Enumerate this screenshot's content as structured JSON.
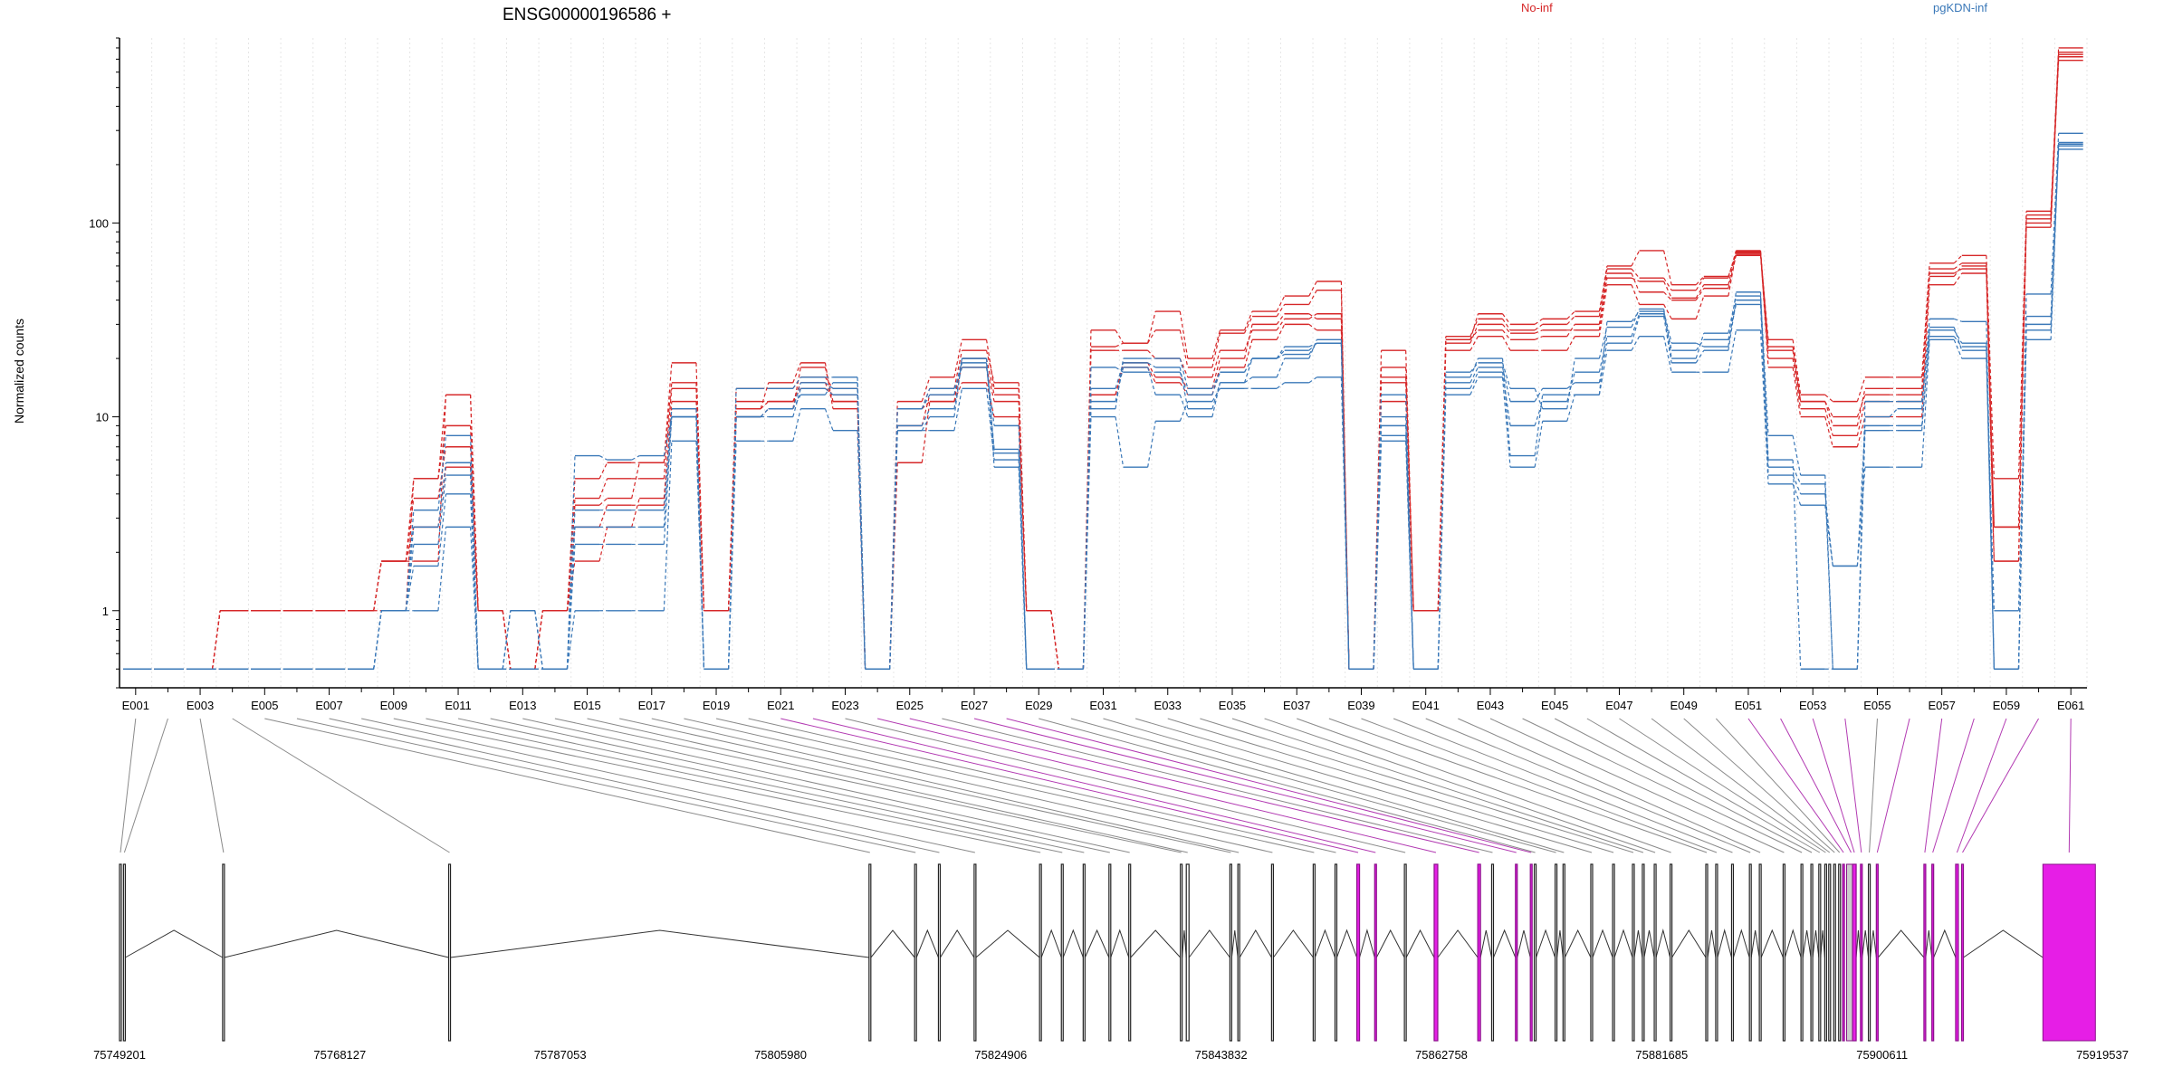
{
  "chart_data": {
    "type": "line",
    "title": "ENSG00000196586 +",
    "ylabel": "Normalized counts",
    "yscale": "log",
    "ylim": [
      0.4,
      900
    ],
    "yticks": [
      1,
      10,
      100
    ],
    "ytick_labels": [
      "1",
      "10",
      "100"
    ],
    "exons": [
      "E001",
      "E002",
      "E003",
      "E004",
      "E005",
      "E006",
      "E007",
      "E008",
      "E009",
      "E010",
      "E011",
      "E012",
      "E013",
      "E014",
      "E015",
      "E016",
      "E017",
      "E018",
      "E019",
      "E020",
      "E021",
      "E022",
      "E023",
      "E024",
      "E025",
      "E026",
      "E027",
      "E028",
      "E029",
      "E030",
      "E031",
      "E032",
      "E033",
      "E034",
      "E035",
      "E036",
      "E037",
      "E038",
      "E039",
      "E040",
      "E041",
      "E042",
      "E043",
      "E044",
      "E045",
      "E046",
      "E047",
      "E048",
      "E049",
      "E050",
      "E051",
      "E052",
      "E053",
      "E054",
      "E055",
      "E056",
      "E057",
      "E058",
      "E059",
      "E060",
      "E061"
    ],
    "labeled_exons": [
      "E001",
      "E003",
      "E005",
      "E007",
      "E009",
      "E011",
      "E013",
      "E015",
      "E017",
      "E019",
      "E021",
      "E023",
      "E025",
      "E027",
      "E029",
      "E031",
      "E033",
      "E035",
      "E037",
      "E039",
      "E041",
      "E043",
      "E045",
      "E047",
      "E049",
      "E051",
      "E053",
      "E055",
      "E057",
      "E059",
      "E061"
    ],
    "legend": [
      {
        "name": "No-inf",
        "color": "#d62728"
      },
      {
        "name": "pgKDN-inf",
        "color": "#3a78b8"
      }
    ],
    "series": [
      {
        "group": "No-inf",
        "color": "#d62728",
        "values": [
          0.5,
          0.5,
          0.5,
          1,
          1,
          1,
          1,
          1,
          1.8,
          1.8,
          13,
          1,
          0.5,
          1,
          1.8,
          2.7,
          3.8,
          11,
          1,
          11,
          12,
          15,
          12,
          0.5,
          5.8,
          12,
          15,
          10,
          1,
          0.5,
          13,
          18,
          15,
          13,
          18,
          25,
          30,
          28,
          0.5,
          12,
          1,
          22,
          26,
          22,
          22,
          26,
          48,
          38,
          32,
          42,
          70,
          18,
          10,
          7,
          10,
          10,
          48,
          55,
          1.8,
          95,
          760
        ]
      },
      {
        "group": "No-inf",
        "color": "#d62728",
        "values": [
          0.5,
          0.5,
          0.5,
          1,
          1,
          1,
          1,
          1,
          1.8,
          2.7,
          5.5,
          1,
          0.5,
          1,
          3.8,
          4.8,
          4.8,
          14,
          1,
          14,
          14,
          16,
          14,
          0.5,
          11,
          12,
          20,
          13,
          1,
          0.5,
          22,
          22,
          20,
          16,
          22,
          28,
          32,
          34,
          0.5,
          15,
          1,
          25,
          28,
          25,
          26,
          30,
          55,
          44,
          40,
          46,
          68,
          20,
          11,
          8,
          12,
          12,
          55,
          58,
          2.7,
          100,
          690
        ]
      },
      {
        "group": "No-inf",
        "color": "#d62728",
        "values": [
          0.5,
          0.5,
          0.5,
          1,
          1,
          1,
          1,
          1,
          1.8,
          3.8,
          7,
          1,
          0.5,
          1,
          4.8,
          5.8,
          5.8,
          15,
          1,
          10,
          11,
          18,
          12,
          0.5,
          11,
          14,
          22,
          15,
          1,
          0.5,
          23,
          24,
          28,
          18,
          27,
          33,
          38,
          45,
          0.5,
          18,
          1,
          26,
          32,
          28,
          30,
          33,
          58,
          52,
          45,
          52,
          72,
          22,
          12,
          9,
          14,
          14,
          58,
          62,
          1.8,
          110,
          740
        ]
      },
      {
        "group": "No-inf",
        "color": "#d62728",
        "values": [
          0.5,
          0.5,
          0.5,
          1,
          1,
          1,
          1,
          1,
          1,
          4.8,
          13,
          1,
          0.5,
          1,
          3.5,
          3.8,
          5.8,
          19,
          1,
          11,
          15,
          19,
          11,
          0.5,
          12,
          16,
          25,
          14,
          1,
          0.5,
          28,
          24,
          35,
          20,
          28,
          35,
          42,
          50,
          0.5,
          22,
          1,
          25,
          34,
          30,
          32,
          35,
          60,
          72,
          48,
          53,
          69,
          25,
          13,
          12,
          16,
          16,
          62,
          68,
          4.8,
          115,
          800
        ]
      },
      {
        "group": "No-inf",
        "color": "#d62728",
        "values": [
          0.5,
          0.5,
          0.5,
          1,
          1,
          1,
          1,
          1,
          1.8,
          4.8,
          9,
          1,
          0.5,
          1,
          2.7,
          3.5,
          3.5,
          12,
          1,
          12,
          12,
          14,
          13,
          0.5,
          9,
          13,
          18,
          12,
          1,
          0.5,
          13,
          19,
          16,
          14,
          20,
          30,
          34,
          32,
          0.5,
          16,
          1,
          24,
          30,
          27,
          28,
          28,
          52,
          50,
          41,
          48,
          71,
          23,
          12,
          10,
          13,
          13,
          53,
          60,
          2.7,
          105,
          720
        ]
      },
      {
        "group": "pgKDN-inf",
        "color": "#3a78b8",
        "values": [
          0.5,
          0.5,
          0.5,
          0.5,
          0.5,
          0.5,
          0.5,
          0.5,
          1,
          1,
          2.7,
          0.5,
          1,
          0.5,
          1,
          1,
          1,
          7.5,
          0.5,
          7.5,
          7.5,
          11,
          8.5,
          0.5,
          8.5,
          8.5,
          14,
          6,
          0.5,
          0.5,
          10,
          5.5,
          9.5,
          12,
          14,
          14,
          15,
          16,
          0.5,
          7.5,
          0.5,
          13,
          16,
          5.5,
          9.5,
          13,
          22,
          26,
          17,
          17,
          28,
          4.5,
          3.5,
          1.7,
          5.5,
          5.5,
          25,
          20,
          1,
          25,
          250
        ]
      },
      {
        "group": "pgKDN-inf",
        "color": "#3a78b8",
        "values": [
          0.5,
          0.5,
          0.5,
          0.5,
          0.5,
          0.5,
          0.5,
          0.5,
          1,
          1.7,
          4,
          0.5,
          1,
          0.5,
          2.7,
          2.7,
          2.7,
          10,
          0.5,
          10,
          11,
          13,
          15,
          0.5,
          11,
          14,
          18,
          9,
          0.5,
          0.5,
          12,
          18,
          13,
          10,
          15,
          20,
          21,
          24,
          0.5,
          10,
          0.5,
          15,
          18,
          12,
          14,
          15,
          24,
          33,
          19,
          22,
          40,
          5.5,
          4.5,
          0.5,
          8.5,
          8.5,
          28,
          24,
          0.5,
          28,
          260
        ]
      },
      {
        "group": "pgKDN-inf",
        "color": "#3a78b8",
        "values": [
          0.5,
          0.5,
          0.5,
          0.5,
          0.5,
          0.5,
          0.5,
          0.5,
          1,
          2.2,
          5,
          0.5,
          1,
          0.5,
          3.3,
          3.3,
          3.3,
          11,
          0.5,
          10,
          10,
          14,
          13,
          0.5,
          11,
          13,
          20,
          6.5,
          0.5,
          0.5,
          18,
          17,
          17,
          13,
          17,
          20,
          23,
          24,
          0.5,
          13,
          0.5,
          17,
          19,
          14,
          11,
          20,
          29,
          36,
          20,
          27,
          42,
          8,
          5,
          0.5,
          12,
          12,
          29,
          22,
          0.5,
          33,
          240
        ]
      },
      {
        "group": "pgKDN-inf",
        "color": "#3a78b8",
        "values": [
          0.5,
          0.5,
          0.5,
          0.5,
          0.5,
          0.5,
          0.5,
          0.5,
          1,
          3.3,
          8,
          0.5,
          0.5,
          0.5,
          6.3,
          6,
          6.3,
          10,
          0.5,
          14,
          14,
          16,
          16,
          0.5,
          8.5,
          10,
          20,
          5.5,
          0.5,
          0.5,
          11,
          20,
          20,
          14,
          17,
          20,
          22,
          24,
          0.5,
          8,
          0.5,
          16,
          20,
          6.3,
          13,
          13,
          31,
          35,
          24,
          23,
          44,
          6,
          0.5,
          0.5,
          10,
          11,
          32,
          31,
          0.5,
          43,
          290
        ]
      },
      {
        "group": "pgKDN-inf",
        "color": "#3a78b8",
        "values": [
          0.5,
          0.5,
          0.5,
          0.5,
          0.5,
          0.5,
          0.5,
          0.5,
          1,
          2.7,
          5.8,
          0.5,
          0.5,
          0.5,
          2.2,
          2.2,
          2.2,
          10,
          0.5,
          10,
          11,
          15,
          14,
          0.5,
          9,
          11,
          19,
          6.8,
          0.5,
          0.5,
          14,
          19,
          18,
          11,
          15,
          16,
          20,
          25,
          0.5,
          9,
          0.5,
          14,
          17,
          9,
          12,
          17,
          26,
          34,
          22,
          25,
          38,
          5,
          4,
          1.7,
          9,
          9,
          26,
          23,
          0.5,
          30,
          255
        ]
      }
    ],
    "genomic_axis": {
      "ticks": [
        75749201,
        75768127,
        75787053,
        75805980,
        75824906,
        75843832,
        75862758,
        75881685,
        75900611,
        75919537
      ],
      "tick_labels": [
        "75749201",
        "75768127",
        "75787053",
        "75805980",
        "75824906",
        "75843832",
        "75862758",
        "75881685",
        "75900611",
        "75919537"
      ],
      "range": [
        75749201,
        75919537
      ]
    },
    "highlight_exons": [
      "E021",
      "E022",
      "E024",
      "E025",
      "E027",
      "E028",
      "E051",
      "E052",
      "E053",
      "E054",
      "E056",
      "E057",
      "E058",
      "E059",
      "E060",
      "E061"
    ],
    "highlight_color": "#e61ee6"
  }
}
